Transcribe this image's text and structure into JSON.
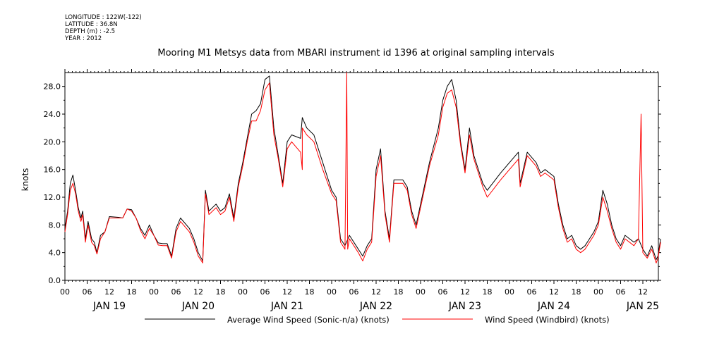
{
  "meta": {
    "longitude": "LONGITUDE : 122W(-122)",
    "latitude": "LATITUDE : 36.8N",
    "depth": "DEPTH (m) : -2.5",
    "year": "YEAR : 2012"
  },
  "chart_data": {
    "type": "line",
    "title": "Mooring M1 Metsys data from MBARI instrument id 1396 at original sampling intervals",
    "ylabel": "knots",
    "xlabel": "",
    "ylim": [
      0,
      30
    ],
    "xlim": [
      0,
      6.75
    ],
    "x_unit": "days since JAN 19 00:00",
    "yticks": [
      0,
      4,
      8,
      12,
      16,
      20,
      24,
      28
    ],
    "ytick_labels": [
      "0.0",
      "4.0",
      "8.0",
      "12.0",
      "16.0",
      "20.0",
      "24.0",
      "28.0"
    ],
    "hour_labels": [
      "00",
      "06",
      "12",
      "18"
    ],
    "day_labels": [
      "JAN 19",
      "JAN 20",
      "JAN 21",
      "JAN 22",
      "JAN 23",
      "JAN 24",
      "JAN 25"
    ],
    "grid": false,
    "legend_position": "bottom",
    "series": [
      {
        "name": "Average Wind Speed (Sonic-n/a) (knots)",
        "color": "#000000",
        "points": [
          [
            0.0,
            7.5
          ],
          [
            0.03,
            10
          ],
          [
            0.06,
            14
          ],
          [
            0.09,
            15.2
          ],
          [
            0.12,
            13
          ],
          [
            0.15,
            10.5
          ],
          [
            0.18,
            9
          ],
          [
            0.2,
            10
          ],
          [
            0.23,
            6
          ],
          [
            0.26,
            8.5
          ],
          [
            0.3,
            6
          ],
          [
            0.33,
            5.5
          ],
          [
            0.36,
            4
          ],
          [
            0.4,
            6.5
          ],
          [
            0.45,
            7
          ],
          [
            0.5,
            9.2
          ],
          [
            0.6,
            9.1
          ],
          [
            0.65,
            9
          ],
          [
            0.7,
            10.3
          ],
          [
            0.75,
            10.2
          ],
          [
            0.8,
            9
          ],
          [
            0.85,
            7.5
          ],
          [
            0.9,
            6.5
          ],
          [
            0.95,
            8
          ],
          [
            1.0,
            6.5
          ],
          [
            1.05,
            5.4
          ],
          [
            1.1,
            5.3
          ],
          [
            1.15,
            5.3
          ],
          [
            1.2,
            3.5
          ],
          [
            1.25,
            7.5
          ],
          [
            1.3,
            9
          ],
          [
            1.4,
            7.5
          ],
          [
            1.45,
            6
          ],
          [
            1.5,
            4
          ],
          [
            1.55,
            2.8
          ],
          [
            1.58,
            13
          ],
          [
            1.62,
            10
          ],
          [
            1.7,
            11
          ],
          [
            1.75,
            10
          ],
          [
            1.8,
            10.5
          ],
          [
            1.85,
            12.5
          ],
          [
            1.9,
            9
          ],
          [
            1.95,
            14
          ],
          [
            2.0,
            17
          ],
          [
            2.05,
            20.5
          ],
          [
            2.1,
            24
          ],
          [
            2.15,
            24.5
          ],
          [
            2.2,
            25.5
          ],
          [
            2.25,
            29
          ],
          [
            2.3,
            29.5
          ],
          [
            2.35,
            22
          ],
          [
            2.4,
            18
          ],
          [
            2.45,
            14
          ],
          [
            2.5,
            20
          ],
          [
            2.55,
            21
          ],
          [
            2.65,
            20.5
          ],
          [
            2.67,
            23.5
          ],
          [
            2.72,
            22
          ],
          [
            2.8,
            21
          ],
          [
            2.85,
            19
          ],
          [
            2.9,
            17
          ],
          [
            3.0,
            13
          ],
          [
            3.05,
            12
          ],
          [
            3.1,
            6
          ],
          [
            3.15,
            5
          ],
          [
            3.2,
            6.5
          ],
          [
            3.3,
            4.5
          ],
          [
            3.35,
            3.5
          ],
          [
            3.4,
            5
          ],
          [
            3.45,
            6
          ],
          [
            3.5,
            16
          ],
          [
            3.55,
            19
          ],
          [
            3.6,
            10
          ],
          [
            3.65,
            6
          ],
          [
            3.7,
            14.5
          ],
          [
            3.8,
            14.5
          ],
          [
            3.85,
            13.5
          ],
          [
            3.9,
            10
          ],
          [
            3.95,
            8
          ],
          [
            4.0,
            11
          ],
          [
            4.1,
            17
          ],
          [
            4.2,
            22
          ],
          [
            4.25,
            26
          ],
          [
            4.3,
            28
          ],
          [
            4.35,
            29
          ],
          [
            4.4,
            26
          ],
          [
            4.45,
            20
          ],
          [
            4.5,
            16
          ],
          [
            4.55,
            22
          ],
          [
            4.6,
            18
          ],
          [
            4.7,
            14
          ],
          [
            4.75,
            13
          ],
          [
            4.9,
            15.5
          ],
          [
            5.1,
            18.5
          ],
          [
            5.12,
            14
          ],
          [
            5.2,
            18.5
          ],
          [
            5.3,
            17
          ],
          [
            5.35,
            15.5
          ],
          [
            5.4,
            16
          ],
          [
            5.5,
            15
          ],
          [
            5.55,
            11
          ],
          [
            5.6,
            8
          ],
          [
            5.65,
            6
          ],
          [
            5.7,
            6.5
          ],
          [
            5.75,
            5
          ],
          [
            5.8,
            4.5
          ],
          [
            5.85,
            5
          ],
          [
            5.9,
            6
          ],
          [
            5.95,
            7
          ],
          [
            6.0,
            8.5
          ],
          [
            6.05,
            13
          ],
          [
            6.1,
            11
          ],
          [
            6.15,
            8
          ],
          [
            6.2,
            6
          ],
          [
            6.25,
            5
          ],
          [
            6.3,
            6.5
          ],
          [
            6.4,
            5.5
          ],
          [
            6.45,
            6
          ],
          [
            6.5,
            4.5
          ],
          [
            6.55,
            3.5
          ],
          [
            6.6,
            5
          ],
          [
            6.65,
            3
          ],
          [
            6.67,
            3.5
          ],
          [
            6.7,
            6
          ]
        ]
      },
      {
        "name": "Wind Speed (Windbird) (knots)",
        "color": "#ff0000",
        "points": [
          [
            0.0,
            7
          ],
          [
            0.03,
            9.5
          ],
          [
            0.06,
            13
          ],
          [
            0.09,
            14
          ],
          [
            0.12,
            12.5
          ],
          [
            0.15,
            10
          ],
          [
            0.18,
            8.5
          ],
          [
            0.2,
            9.5
          ],
          [
            0.23,
            5.5
          ],
          [
            0.26,
            8
          ],
          [
            0.3,
            5.5
          ],
          [
            0.33,
            5
          ],
          [
            0.36,
            3.8
          ],
          [
            0.4,
            6
          ],
          [
            0.45,
            7
          ],
          [
            0.5,
            9
          ],
          [
            0.6,
            9
          ],
          [
            0.65,
            9
          ],
          [
            0.7,
            10.3
          ],
          [
            0.75,
            10
          ],
          [
            0.8,
            9
          ],
          [
            0.85,
            7.2
          ],
          [
            0.9,
            6
          ],
          [
            0.95,
            7.5
          ],
          [
            1.0,
            6.5
          ],
          [
            1.05,
            5.1
          ],
          [
            1.1,
            5
          ],
          [
            1.15,
            5
          ],
          [
            1.2,
            3.2
          ],
          [
            1.25,
            7
          ],
          [
            1.3,
            8.5
          ],
          [
            1.4,
            7
          ],
          [
            1.45,
            5.5
          ],
          [
            1.5,
            3.5
          ],
          [
            1.55,
            2.5
          ],
          [
            1.58,
            12.5
          ],
          [
            1.62,
            9.5
          ],
          [
            1.7,
            10.5
          ],
          [
            1.75,
            9.5
          ],
          [
            1.8,
            10
          ],
          [
            1.85,
            12
          ],
          [
            1.9,
            8.5
          ],
          [
            1.95,
            13.5
          ],
          [
            2.0,
            16.5
          ],
          [
            2.05,
            20
          ],
          [
            2.1,
            23
          ],
          [
            2.15,
            23
          ],
          [
            2.2,
            24.5
          ],
          [
            2.25,
            27.5
          ],
          [
            2.3,
            28.5
          ],
          [
            2.35,
            21
          ],
          [
            2.4,
            17.5
          ],
          [
            2.45,
            13.5
          ],
          [
            2.5,
            19
          ],
          [
            2.55,
            20
          ],
          [
            2.65,
            18.5
          ],
          [
            2.67,
            16
          ],
          [
            2.67,
            22
          ],
          [
            2.72,
            21
          ],
          [
            2.8,
            20
          ],
          [
            2.85,
            18
          ],
          [
            2.9,
            16
          ],
          [
            3.0,
            12.5
          ],
          [
            3.05,
            11.5
          ],
          [
            3.1,
            5.5
          ],
          [
            3.15,
            4.5
          ],
          [
            3.17,
            30
          ],
          [
            3.18,
            4.5
          ],
          [
            3.2,
            6
          ],
          [
            3.3,
            4
          ],
          [
            3.35,
            2.8
          ],
          [
            3.4,
            4.5
          ],
          [
            3.45,
            5.5
          ],
          [
            3.5,
            15
          ],
          [
            3.55,
            18
          ],
          [
            3.6,
            9.5
          ],
          [
            3.65,
            5.5
          ],
          [
            3.7,
            14
          ],
          [
            3.8,
            14
          ],
          [
            3.85,
            13
          ],
          [
            3.9,
            9.5
          ],
          [
            3.95,
            7.5
          ],
          [
            4.0,
            10.5
          ],
          [
            4.1,
            16.5
          ],
          [
            4.2,
            21
          ],
          [
            4.25,
            25
          ],
          [
            4.3,
            27
          ],
          [
            4.35,
            27.5
          ],
          [
            4.4,
            25
          ],
          [
            4.45,
            19.5
          ],
          [
            4.5,
            15.5
          ],
          [
            4.55,
            21
          ],
          [
            4.6,
            17.5
          ],
          [
            4.7,
            13.5
          ],
          [
            4.75,
            12
          ],
          [
            4.9,
            14.5
          ],
          [
            5.1,
            17.5
          ],
          [
            5.12,
            13.5
          ],
          [
            5.2,
            18
          ],
          [
            5.3,
            16.5
          ],
          [
            5.35,
            15
          ],
          [
            5.4,
            15.5
          ],
          [
            5.5,
            14.5
          ],
          [
            5.55,
            10.5
          ],
          [
            5.6,
            7.5
          ],
          [
            5.65,
            5.5
          ],
          [
            5.7,
            6
          ],
          [
            5.75,
            4.5
          ],
          [
            5.8,
            4
          ],
          [
            5.85,
            4.5
          ],
          [
            5.9,
            5.5
          ],
          [
            5.95,
            6.5
          ],
          [
            6.0,
            8
          ],
          [
            6.05,
            12
          ],
          [
            6.1,
            10
          ],
          [
            6.15,
            7.5
          ],
          [
            6.2,
            5.5
          ],
          [
            6.25,
            4.5
          ],
          [
            6.3,
            6
          ],
          [
            6.4,
            5
          ],
          [
            6.45,
            6
          ],
          [
            6.48,
            24
          ],
          [
            6.5,
            4
          ],
          [
            6.55,
            3.2
          ],
          [
            6.6,
            4.5
          ],
          [
            6.65,
            2.5
          ],
          [
            6.67,
            3.2
          ],
          [
            6.7,
            5.5
          ]
        ]
      }
    ]
  }
}
